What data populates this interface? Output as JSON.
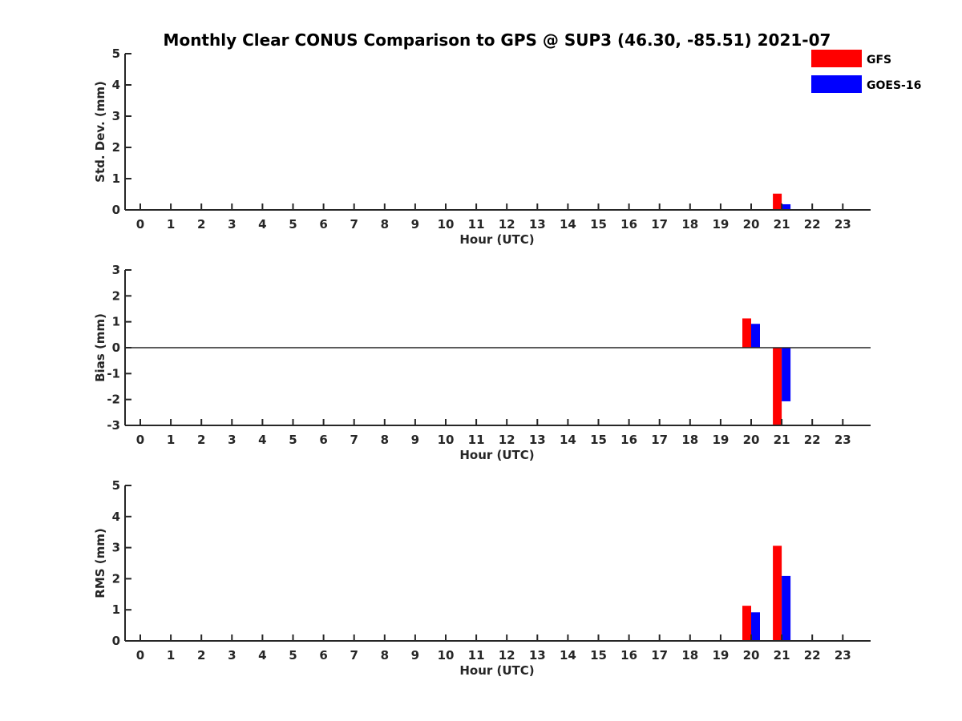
{
  "title": "Monthly Clear CONUS Comparison to GPS @ SUP3 (46.30, -85.51) 2021-07",
  "legend": [
    {
      "name": "GFS",
      "color": "#ff0000"
    },
    {
      "name": "GOES-16",
      "color": "#0000ff"
    }
  ],
  "chart_data": [
    {
      "type": "bar",
      "xlabel": "Hour (UTC)",
      "ylabel": "Std. Dev. (mm)",
      "x": [
        0,
        1,
        2,
        3,
        4,
        5,
        6,
        7,
        8,
        9,
        10,
        11,
        12,
        13,
        14,
        15,
        16,
        17,
        18,
        19,
        20,
        21,
        22,
        23
      ],
      "ylim": [
        0,
        5
      ],
      "yticks": [
        0,
        1,
        2,
        3,
        4,
        5
      ],
      "series": [
        {
          "name": "GFS",
          "color": "#ff0000",
          "points": [
            {
              "x": 21,
              "y": 0.52
            }
          ]
        },
        {
          "name": "GOES-16",
          "color": "#0000ff",
          "points": [
            {
              "x": 21,
              "y": 0.18
            }
          ]
        }
      ]
    },
    {
      "type": "bar",
      "xlabel": "Hour (UTC)",
      "ylabel": "Bias (mm)",
      "x": [
        0,
        1,
        2,
        3,
        4,
        5,
        6,
        7,
        8,
        9,
        10,
        11,
        12,
        13,
        14,
        15,
        16,
        17,
        18,
        19,
        20,
        21,
        22,
        23
      ],
      "ylim": [
        -3,
        3
      ],
      "yticks": [
        -3,
        -2,
        -1,
        0,
        1,
        2,
        3
      ],
      "zero_line": true,
      "series": [
        {
          "name": "GFS",
          "color": "#ff0000",
          "points": [
            {
              "x": 20,
              "y": 1.13
            },
            {
              "x": 21,
              "y": -3.0
            }
          ]
        },
        {
          "name": "GOES-16",
          "color": "#0000ff",
          "points": [
            {
              "x": 20,
              "y": 0.92
            },
            {
              "x": 21,
              "y": -2.07
            }
          ]
        }
      ]
    },
    {
      "type": "bar",
      "xlabel": "Hour (UTC)",
      "ylabel": "RMS (mm)",
      "x": [
        0,
        1,
        2,
        3,
        4,
        5,
        6,
        7,
        8,
        9,
        10,
        11,
        12,
        13,
        14,
        15,
        16,
        17,
        18,
        19,
        20,
        21,
        22,
        23
      ],
      "ylim": [
        0,
        5
      ],
      "yticks": [
        0,
        1,
        2,
        3,
        4,
        5
      ],
      "series": [
        {
          "name": "GFS",
          "color": "#ff0000",
          "points": [
            {
              "x": 20,
              "y": 1.13
            },
            {
              "x": 21,
              "y": 3.06
            }
          ]
        },
        {
          "name": "GOES-16",
          "color": "#0000ff",
          "points": [
            {
              "x": 20,
              "y": 0.92
            },
            {
              "x": 21,
              "y": 2.09
            }
          ]
        }
      ]
    }
  ]
}
